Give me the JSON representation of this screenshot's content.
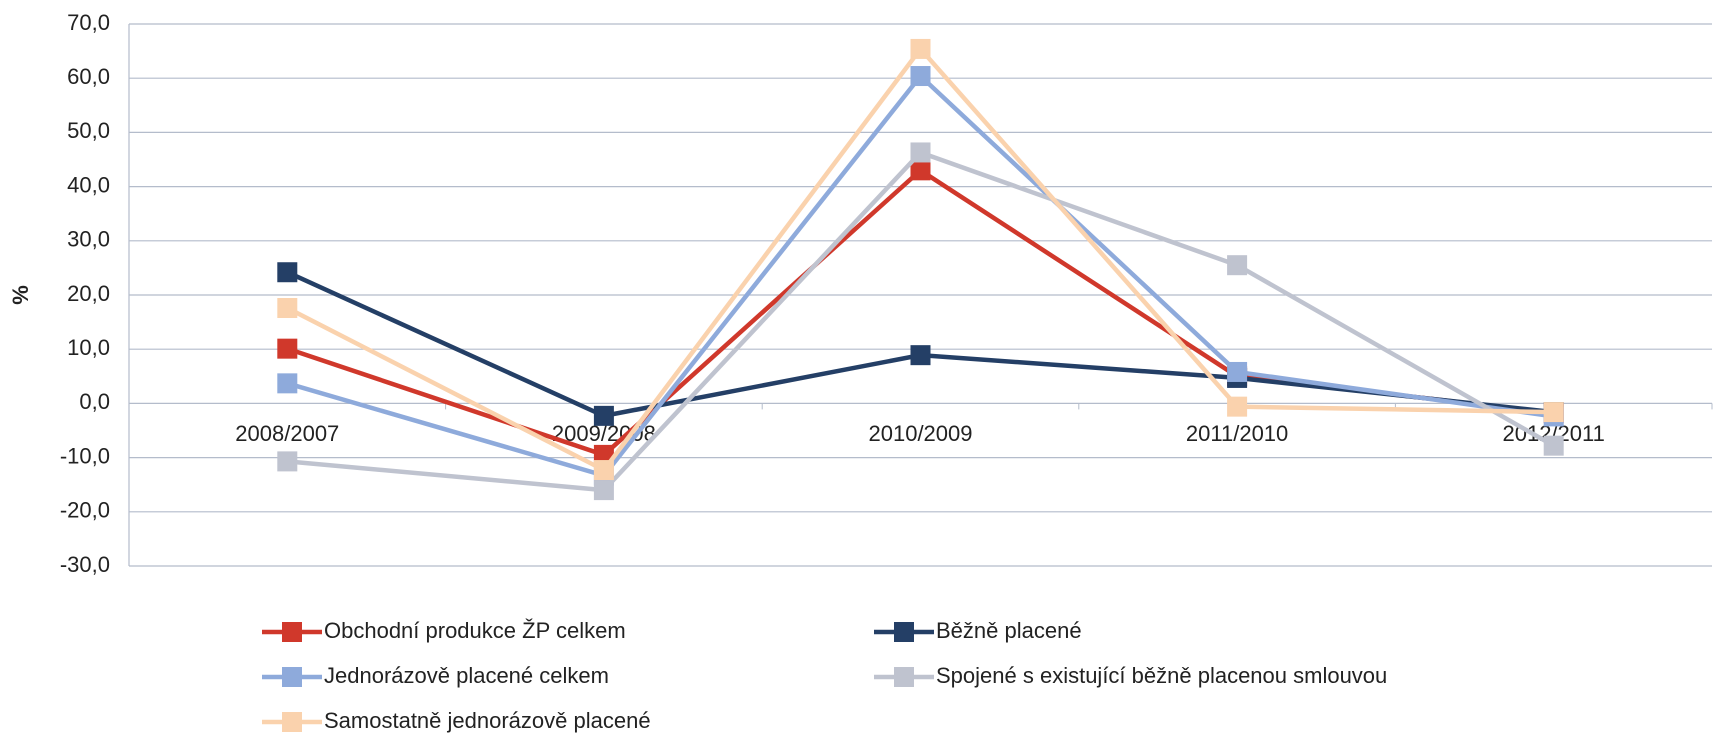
{
  "chart_data": {
    "type": "line",
    "y_label": "%",
    "categories": [
      "2008/2007",
      "2009/2008",
      "2010/2009",
      "2011/2010",
      "2012/2011"
    ],
    "series": [
      {
        "name": "Obchodní produkce ŽP celkem",
        "color": "#d0382b",
        "values": [
          10.1,
          -9.5,
          43.0,
          5.0,
          -1.8
        ]
      },
      {
        "name": "Běžně placené",
        "color": "#243f66",
        "values": [
          24.2,
          -2.3,
          8.9,
          4.7,
          -1.6
        ]
      },
      {
        "name": "Jednorázově placené celkem",
        "color": "#8eaadb",
        "values": [
          3.7,
          -13.3,
          60.4,
          5.8,
          -2.4
        ]
      },
      {
        "name": "Spojené s existující běžně placenou smlouvou",
        "color": "#bfc3cf",
        "values": [
          -10.7,
          -16.0,
          46.3,
          25.5,
          -7.8
        ]
      },
      {
        "name": "Samostatně jednorázově placené",
        "color": "#fad2ad",
        "values": [
          17.6,
          -12.3,
          65.4,
          -0.6,
          -1.6
        ]
      }
    ],
    "ylim": [
      -30,
      70
    ],
    "yticks": [
      {
        "value": -30,
        "label": "-30,0"
      },
      {
        "value": -20,
        "label": "-20,0"
      },
      {
        "value": -10,
        "label": "-10,0"
      },
      {
        "value": 0,
        "label": "0,0"
      },
      {
        "value": 10,
        "label": "10,0"
      },
      {
        "value": 20,
        "label": "20,0"
      },
      {
        "value": 30,
        "label": "30,0"
      },
      {
        "value": 40,
        "label": "40,0"
      },
      {
        "value": 50,
        "label": "50,0"
      },
      {
        "value": 60,
        "label": "60,0"
      },
      {
        "value": 70,
        "label": "70,0"
      }
    ],
    "grid": true
  }
}
